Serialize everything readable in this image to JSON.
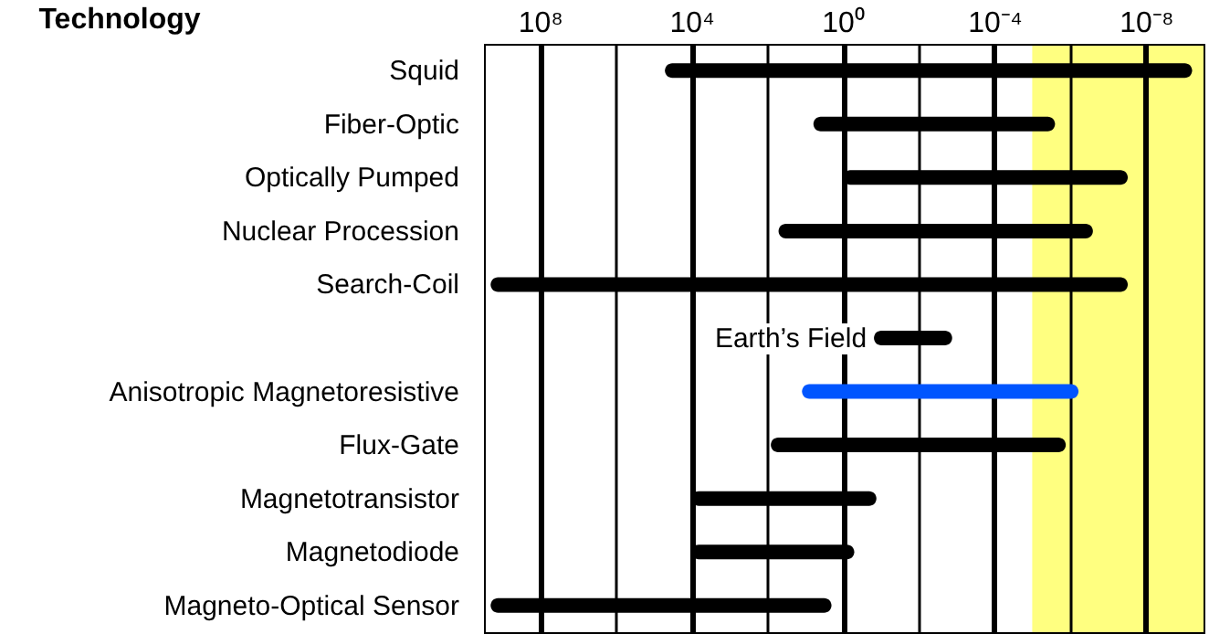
{
  "chart_data": {
    "type": "bar",
    "orientation": "horizontal",
    "log": "x",
    "ylabel": "Technology",
    "categories": [
      "Squid",
      "Fiber-Optic",
      "Optically Pumped",
      "Nuclear Procession",
      "Search-Coil",
      null,
      "Anisotropic Magnetoresistive",
      "Flux-Gate",
      "Magnetotransistor",
      "Magnetodiode",
      "Magneto-Optical Sensor"
    ],
    "base": [
      6e-10,
      2.5e-06,
      3e-08,
      2.5e-07,
      3e-08,
      0.0013,
      6e-07,
      1.3e-06,
      0.13,
      0.5,
      2
    ],
    "values": [
      50000,
      6,
      1,
      50,
      2000000000,
      0.15,
      12,
      80,
      10000,
      10000,
      2000000000
    ],
    "colors": [
      "#000000",
      "#000000",
      "#000000",
      "#000000",
      "#000000",
      "#000000",
      "#0055ff",
      "#000000",
      "#000000",
      "#000000",
      "#000000"
    ],
    "xlim": [
      3000000000,
      3e-10
    ],
    "xticks": [
      {
        "value": 100000000,
        "label": "10⁸"
      },
      {
        "value": 1000000,
        "label": null
      },
      {
        "value": 10000,
        "label": "10⁴"
      },
      {
        "value": 100,
        "label": null
      },
      {
        "value": 1,
        "label": "10⁰"
      },
      {
        "value": 0.01,
        "label": null
      },
      {
        "value": 0.0001,
        "label": "10⁻⁴"
      },
      {
        "value": 1e-06,
        "label": null
      },
      {
        "value": 1e-08,
        "label": "10⁻⁸"
      }
    ],
    "grid": "x",
    "bands": [
      {
        "axis": "x",
        "from": 1e-05,
        "to": 3e-10,
        "color": "#ffff80"
      }
    ],
    "annotations": [
      "Earth’s Field"
    ]
  }
}
